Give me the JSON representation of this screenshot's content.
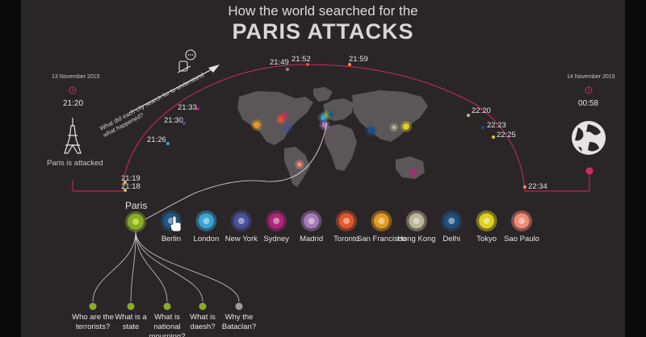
{
  "header": {
    "line1": "How the world searched for the",
    "line2": "PARIS ATTACKS"
  },
  "start": {
    "date": "13 November 2015",
    "time": "21:20",
    "caption": "Paris is attacked"
  },
  "end": {
    "date": "14 November 2015",
    "time": "00:58"
  },
  "prompt": {
    "text": "What did each city search for to understand what happened?"
  },
  "timeline": [
    {
      "time": "21:18"
    },
    {
      "time": "21:19"
    },
    {
      "time": "21:26"
    },
    {
      "time": "21:30"
    },
    {
      "time": "21:33"
    },
    {
      "time": "21:49"
    },
    {
      "time": "21:52"
    },
    {
      "time": "21:59"
    },
    {
      "time": "22:20"
    },
    {
      "time": "22:23"
    },
    {
      "time": "22:25"
    },
    {
      "time": "22:34"
    }
  ],
  "selected_city": "Paris",
  "cities": [
    {
      "name": "Berlin",
      "color": "#1e5a8a"
    },
    {
      "name": "London",
      "color": "#3aa3d6"
    },
    {
      "name": "New York",
      "color": "#4a4f9e"
    },
    {
      "name": "Sydney",
      "color": "#b0247a"
    },
    {
      "name": "Madrid",
      "color": "#a67bb8"
    },
    {
      "name": "Toronto",
      "color": "#e0572a"
    },
    {
      "name": "San Francisco",
      "color": "#e39a22"
    },
    {
      "name": "Hong Kong",
      "color": "#b9b69a"
    },
    {
      "name": "Delhi",
      "color": "#1f4f7e"
    },
    {
      "name": "Tokyo",
      "color": "#ded01c"
    },
    {
      "name": "Sao Paulo",
      "color": "#f28a73"
    }
  ],
  "paris_color": "#8aab2a",
  "accent": "#d12a5a",
  "questions": [
    {
      "text": "Who are the terrorists?",
      "color": "#8aab2a"
    },
    {
      "text": "What is a state",
      "color": "#8aab2a"
    },
    {
      "text": "What is national mourning?",
      "color": "#8aab2a"
    },
    {
      "text": "What is daesh?",
      "color": "#8aab2a"
    },
    {
      "text": "Why the Bataclan?",
      "color": "#9a9a9a"
    }
  ]
}
